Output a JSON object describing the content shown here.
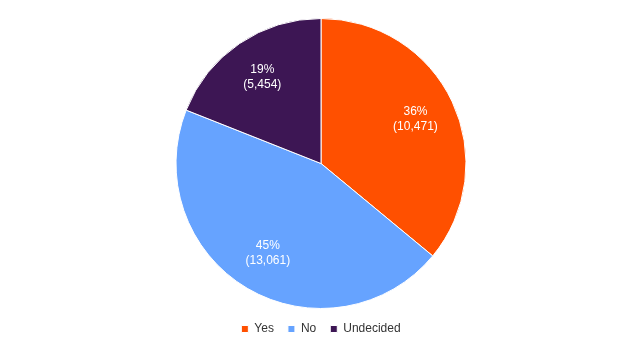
{
  "chart_data": {
    "type": "pie",
    "categories": [
      "Yes",
      "No",
      "Undecided"
    ],
    "values": [
      36,
      45,
      19
    ],
    "value_labels": [
      "36%",
      "45%",
      "19%"
    ],
    "counts": [
      10471,
      13061,
      5454
    ],
    "count_labels": [
      "(10,471)",
      "(13,061)",
      "(5,454)"
    ],
    "colors": [
      "#ff5000",
      "#66a3ff",
      "#3d1654"
    ],
    "legend": "bottom",
    "data_labels": true
  }
}
